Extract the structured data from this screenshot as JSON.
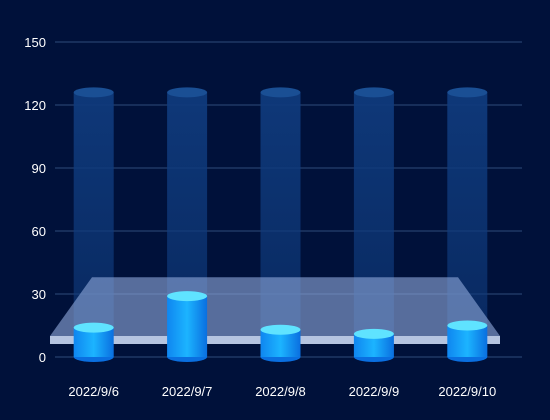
{
  "chart_data": {
    "type": "bar",
    "style": "3d-cylinder",
    "categories": [
      "2022/9/6",
      "2022/9/7",
      "2022/9/8",
      "2022/9/9",
      "2022/9/10"
    ],
    "series": [
      {
        "values": [
          14,
          29,
          13,
          11,
          15
        ]
      }
    ],
    "background_cylinders": {
      "value": 126
    },
    "y_ticks": [
      "0",
      "30",
      "60",
      "90",
      "120",
      "150"
    ],
    "ylim": [
      0,
      150
    ],
    "grid": true,
    "base_plane": {
      "value": 38
    },
    "colors": {
      "background": "#00113a",
      "grid": "#2e4a7a",
      "bar_top": "#5fe3ff",
      "bar_body_light": "#1aa6ff",
      "bar_body_dark": "#0a6fe0",
      "shadow_cylinder": "#0d2f6b",
      "plane": "#8da6d8",
      "plane_edge": "#c9d8f3"
    }
  }
}
